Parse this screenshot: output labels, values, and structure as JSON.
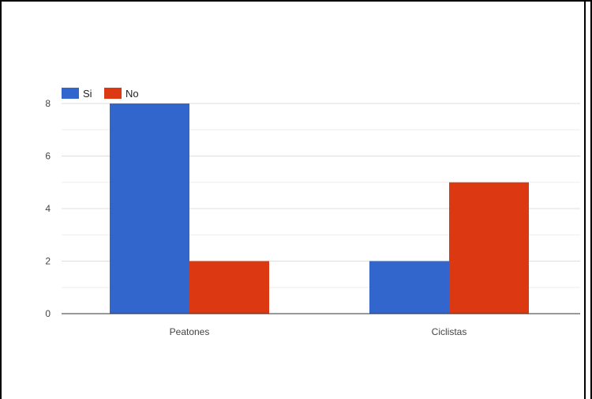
{
  "chart_data": {
    "type": "bar",
    "categories": [
      "Peatones",
      "Ciclistas"
    ],
    "series": [
      {
        "name": "Si",
        "values": [
          8,
          2
        ],
        "color": "#3366cc"
      },
      {
        "name": "No",
        "values": [
          2,
          5
        ],
        "color": "#dc3912"
      }
    ],
    "ylim": [
      0,
      8
    ],
    "yticks": [
      "0",
      "2",
      "4",
      "6",
      "8"
    ],
    "grid": true,
    "legend_position": "top-left"
  }
}
